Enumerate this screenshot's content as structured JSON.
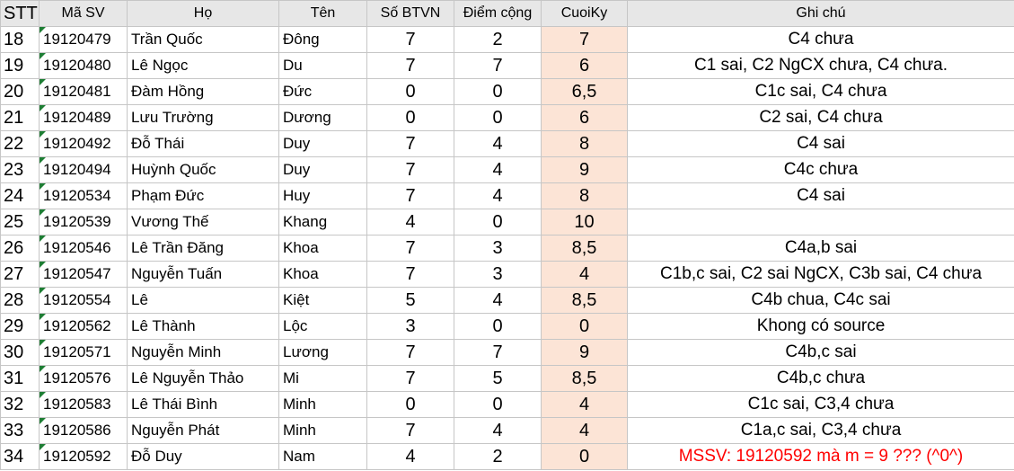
{
  "headers": {
    "stt": "STT",
    "masv": "Mã SV",
    "ho": "Họ",
    "ten": "Tên",
    "sobtvn": "Số BTVN",
    "diemcong": "Điểm cộng",
    "cuoiky": "CuoiKy",
    "ghichu": "Ghi chú"
  },
  "rows": [
    {
      "stt": "18",
      "masv": "19120479",
      "ho": "Trần Quốc",
      "ten": "Đông",
      "sobtvn": "7",
      "diemcong": "2",
      "cuoiky": "7",
      "ghichu": "C4 chưa"
    },
    {
      "stt": "19",
      "masv": "19120480",
      "ho": "Lê Ngọc",
      "ten": "Du",
      "sobtvn": "7",
      "diemcong": "7",
      "cuoiky": "6",
      "ghichu": "C1 sai, C2 NgCX chưa, C4 chưa."
    },
    {
      "stt": "20",
      "masv": "19120481",
      "ho": "Đàm Hồng",
      "ten": "Đức",
      "sobtvn": "0",
      "diemcong": "0",
      "cuoiky": "6,5",
      "ghichu": "C1c sai, C4 chưa"
    },
    {
      "stt": "21",
      "masv": "19120489",
      "ho": "Lưu Trường",
      "ten": "Dương",
      "sobtvn": "0",
      "diemcong": "0",
      "cuoiky": "6",
      "ghichu": "C2 sai, C4 chưa"
    },
    {
      "stt": "22",
      "masv": "19120492",
      "ho": "Đỗ Thái",
      "ten": "Duy",
      "sobtvn": "7",
      "diemcong": "4",
      "cuoiky": "8",
      "ghichu": "C4 sai"
    },
    {
      "stt": "23",
      "masv": "19120494",
      "ho": "Huỳnh Quốc",
      "ten": "Duy",
      "sobtvn": "7",
      "diemcong": "4",
      "cuoiky": "9",
      "ghichu": "C4c chưa"
    },
    {
      "stt": "24",
      "masv": "19120534",
      "ho": "Phạm Đức",
      "ten": "Huy",
      "sobtvn": "7",
      "diemcong": "4",
      "cuoiky": "8",
      "ghichu": "C4 sai"
    },
    {
      "stt": "25",
      "masv": "19120539",
      "ho": "Vương Thế",
      "ten": "Khang",
      "sobtvn": "4",
      "diemcong": "0",
      "cuoiky": "10",
      "ghichu": ""
    },
    {
      "stt": "26",
      "masv": "19120546",
      "ho": "Lê Trần Đăng",
      "ten": "Khoa",
      "sobtvn": "7",
      "diemcong": "3",
      "cuoiky": "8,5",
      "ghichu": "C4a,b sai"
    },
    {
      "stt": "27",
      "masv": "19120547",
      "ho": "Nguyễn Tuấn",
      "ten": "Khoa",
      "sobtvn": "7",
      "diemcong": "3",
      "cuoiky": "4",
      "ghichu": "C1b,c sai, C2 sai NgCX, C3b sai, C4 chưa"
    },
    {
      "stt": "28",
      "masv": "19120554",
      "ho": "Lê",
      "ten": "Kiệt",
      "sobtvn": "5",
      "diemcong": "4",
      "cuoiky": "8,5",
      "ghichu": "C4b chua, C4c sai"
    },
    {
      "stt": "29",
      "masv": "19120562",
      "ho": "Lê Thành",
      "ten": "Lộc",
      "sobtvn": "3",
      "diemcong": "0",
      "cuoiky": "0",
      "ghichu": "Khong có source"
    },
    {
      "stt": "30",
      "masv": "19120571",
      "ho": "Nguyễn Minh",
      "ten": "Lương",
      "sobtvn": "7",
      "diemcong": "7",
      "cuoiky": "9",
      "ghichu": "C4b,c sai"
    },
    {
      "stt": "31",
      "masv": "19120576",
      "ho": "Lê Nguyễn Thảo",
      "ten": "Mi",
      "sobtvn": "7",
      "diemcong": "5",
      "cuoiky": "8,5",
      "ghichu": "C4b,c chưa"
    },
    {
      "stt": "32",
      "masv": "19120583",
      "ho": "Lê Thái Bình",
      "ten": "Minh",
      "sobtvn": "0",
      "diemcong": "0",
      "cuoiky": "4",
      "ghichu": "C1c sai, C3,4 chưa"
    },
    {
      "stt": "33",
      "masv": "19120586",
      "ho": "Nguyễn Phát",
      "ten": "Minh",
      "sobtvn": "7",
      "diemcong": "4",
      "cuoiky": "4",
      "ghichu": "C1a,c sai, C3,4 chưa"
    },
    {
      "stt": "34",
      "masv": "19120592",
      "ho": "Đỗ Duy",
      "ten": "Nam",
      "sobtvn": "4",
      "diemcong": "2",
      "cuoiky": "0",
      "ghichu": "MSSV: 19120592 mà m = 9 ??? (^0^)"
    }
  ],
  "colors": {
    "cuoiky_fill": "#fce4d6",
    "header_fill": "#e7e7e7",
    "gridline": "#c6c6c6",
    "warning_text": "#ff0000",
    "comment_marker": "#1e7e34"
  },
  "highlight_note_row": 16
}
